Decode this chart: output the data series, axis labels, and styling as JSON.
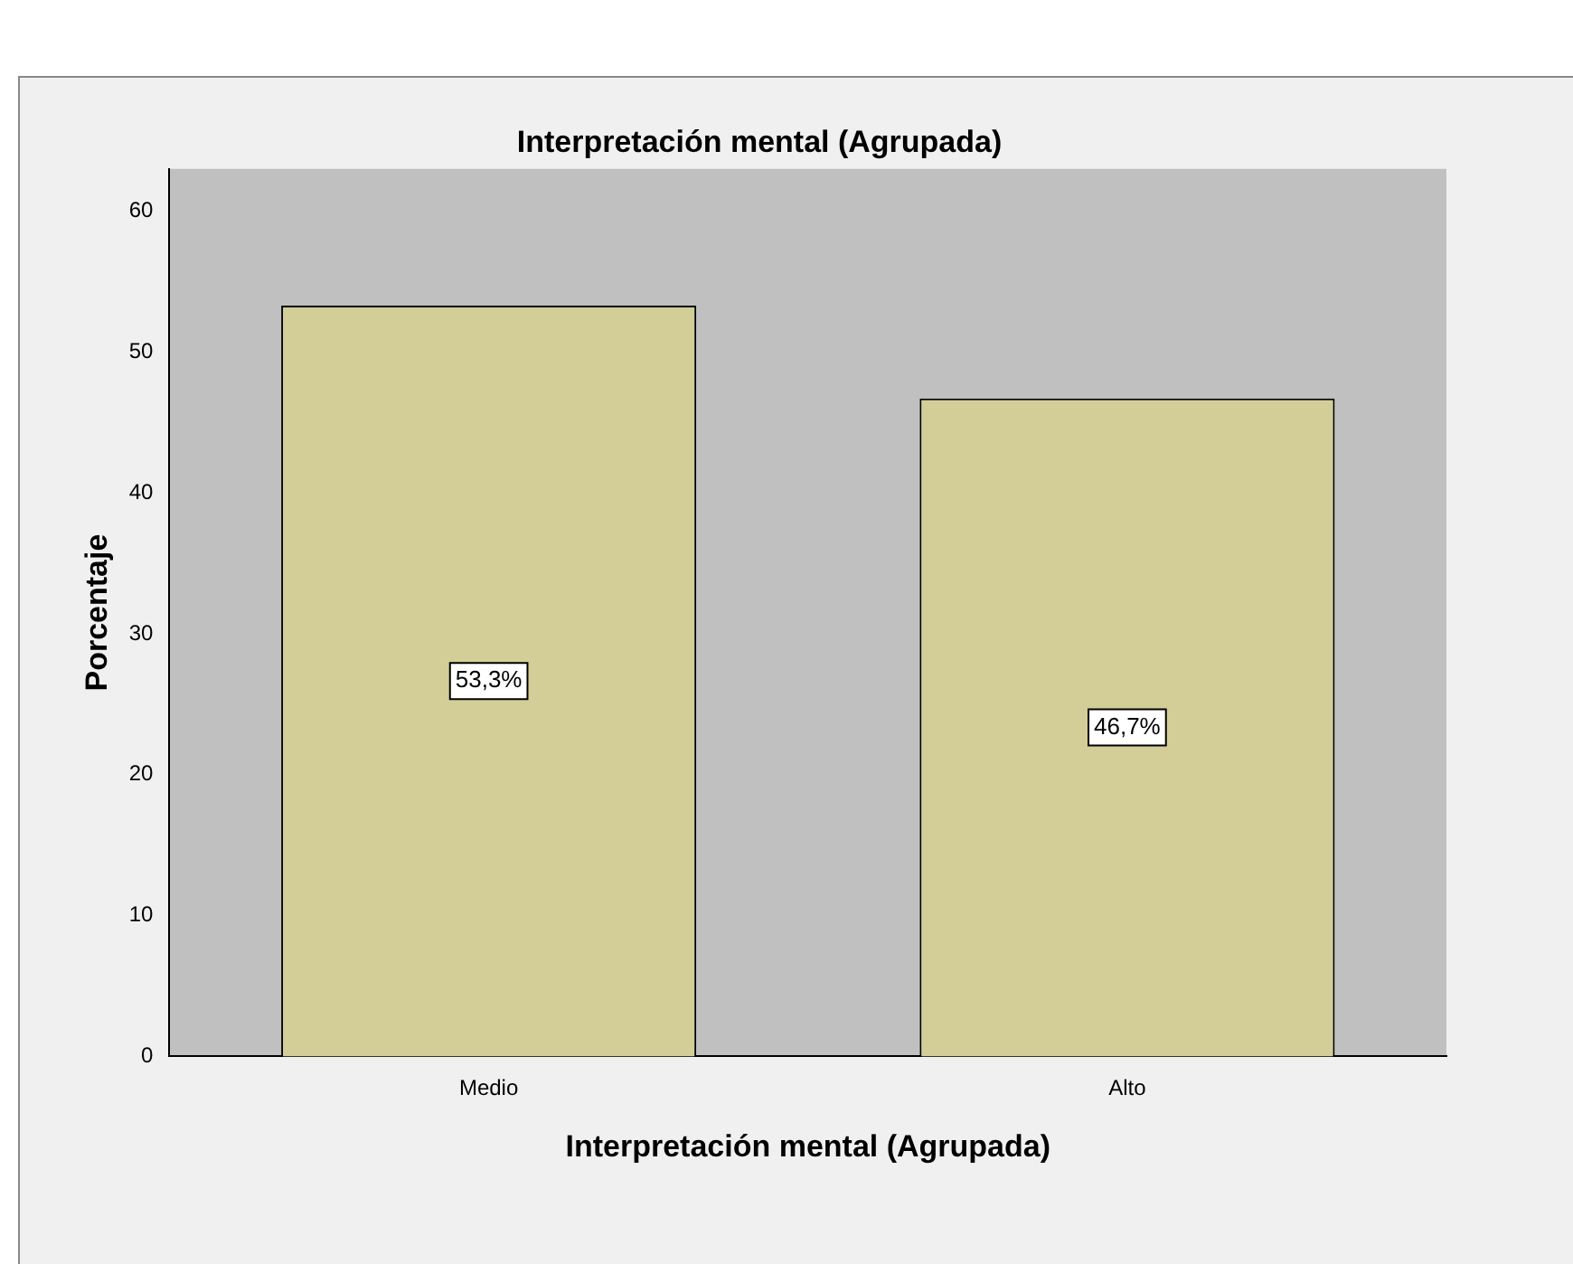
{
  "chart_data": {
    "type": "bar",
    "title": "Interpretación mental (Agrupada)",
    "xlabel": "Interpretación mental (Agrupada)",
    "ylabel": "Porcentaje",
    "categories": [
      "Medio",
      "Alto"
    ],
    "values": [
      53.3,
      46.7
    ],
    "value_labels": [
      "53,3%",
      "46,7%"
    ],
    "color": "#d3ce97",
    "ylim": [
      0,
      63
    ],
    "yticks": [
      0,
      10,
      20,
      30,
      40,
      50,
      60
    ]
  }
}
